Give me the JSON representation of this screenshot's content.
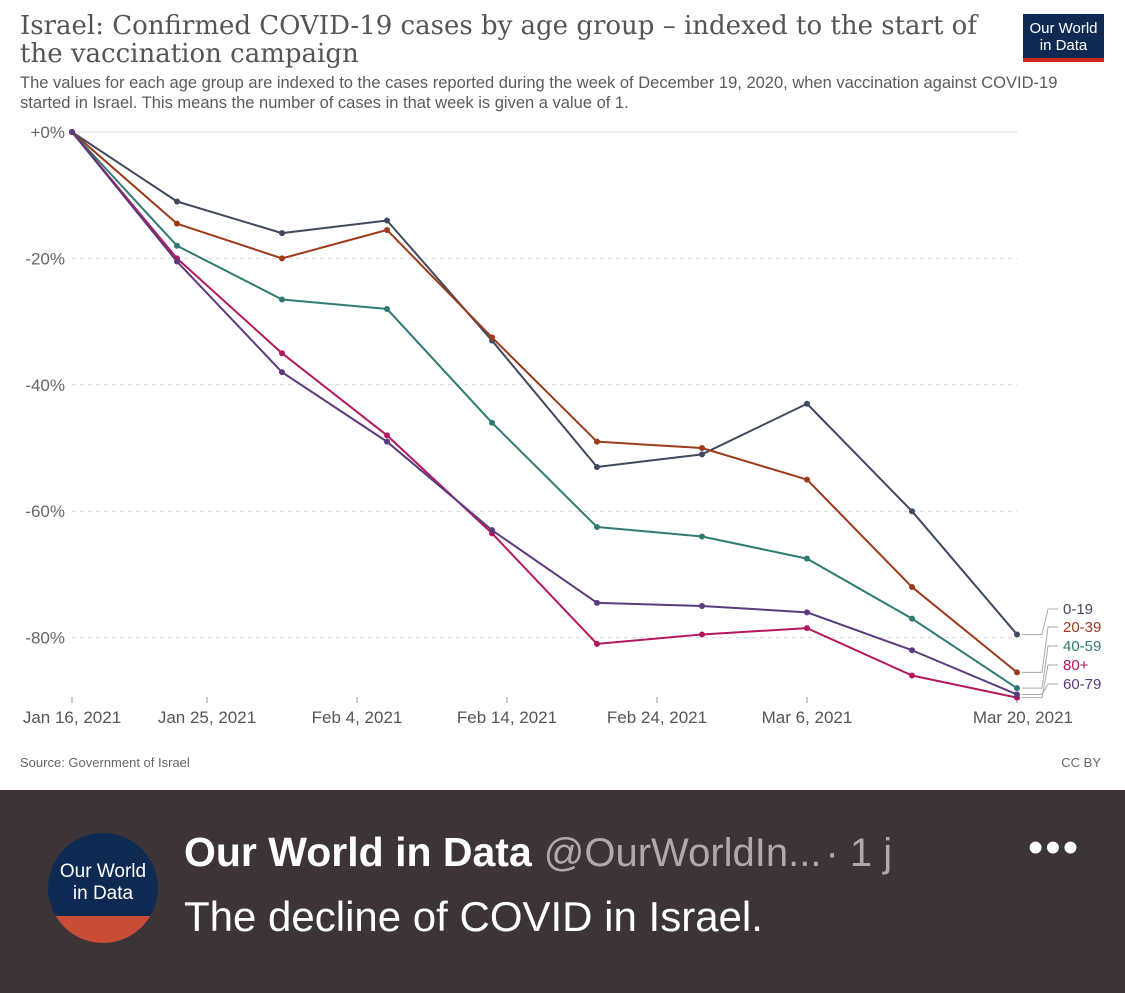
{
  "chart_data": {
    "type": "line",
    "title": "Israel: Confirmed COVID-19 cases by age group – indexed to the start of the vaccination campaign",
    "subtitle": "The values for each age group are indexed to the cases reported during the week of December 19, 2020, when vaccination against COVID-19 started in Israel. This means the number of cases in that week is given a value of 1.",
    "x_dates": [
      "Jan 16, 2021",
      "Jan 23, 2021",
      "Jan 30, 2021",
      "Feb 6, 2021",
      "Feb 13, 2021",
      "Feb 20, 2021",
      "Feb 27, 2021",
      "Mar 6, 2021",
      "Mar 13, 2021",
      "Mar 20, 2021"
    ],
    "x_ticks": [
      "Jan 16, 2021",
      "Jan 25, 2021",
      "Feb 4, 2021",
      "Feb 14, 2021",
      "Feb 24, 2021",
      "Mar 6, 2021",
      "Mar 20, 2021"
    ],
    "y_ticks": [
      "+0%",
      "-20%",
      "-40%",
      "-60%",
      "-80%"
    ],
    "ylim": [
      -90,
      0
    ],
    "grid": true,
    "legend_placement": "right-end",
    "series": [
      {
        "name": "0-19",
        "color": "#3f4a5e",
        "values": [
          0,
          -11,
          -16,
          -14,
          -33,
          -53,
          -51,
          -43,
          -60,
          -79.5
        ]
      },
      {
        "name": "20-39",
        "color": "#9c3a19",
        "values": [
          0,
          -14.5,
          -20,
          -15.5,
          -32.5,
          -49,
          -50,
          -55,
          -72,
          -85.5
        ]
      },
      {
        "name": "40-59",
        "color": "#2f7a72",
        "values": [
          0,
          -18,
          -26.5,
          -28,
          -46,
          -62.5,
          -64,
          -67.5,
          -77,
          -88
        ]
      },
      {
        "name": "80+",
        "color": "#b5175e",
        "values": [
          0,
          -20,
          -35,
          -48,
          -63.5,
          -81,
          -79.5,
          -78.5,
          -86,
          -89.5
        ]
      },
      {
        "name": "60-79",
        "color": "#5b3a7d",
        "values": [
          0,
          -20.5,
          -38,
          -49,
          -63,
          -74.5,
          -75,
          -76,
          -82,
          -89
        ]
      }
    ],
    "source": "Source: Government of Israel",
    "license": "CC BY"
  },
  "logo": {
    "line1": "Our World",
    "line2": "in Data"
  },
  "tweet": {
    "avatar_line1": "Our World",
    "avatar_line2": "in Data",
    "author": "Our World in Data",
    "handle": "@OurWorldIn...",
    "time": "· 1 j",
    "more": "•••",
    "text": "The decline of COVID in Israel."
  },
  "colors": {
    "tweet_bg": "#3d3438",
    "brand_navy": "#0f2a52",
    "brand_red": "#ce261e"
  }
}
